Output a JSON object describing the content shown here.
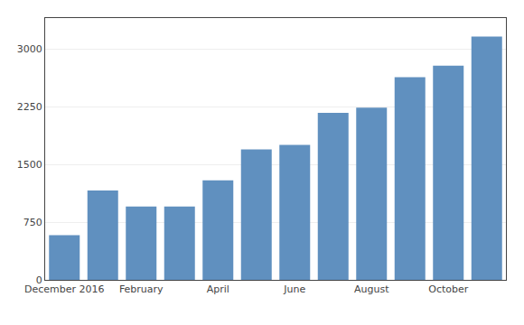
{
  "chart_data": {
    "type": "bar",
    "categories": [
      "December 2016",
      null,
      "February",
      null,
      "April",
      null,
      "June",
      null,
      "August",
      null,
      "October",
      null
    ],
    "values": [
      579,
      1162,
      952,
      952,
      1292,
      1694,
      1754,
      2169,
      2235,
      2632,
      2781,
      3159
    ],
    "color": "#6090BF",
    "ylim": [
      0,
      3400
    ],
    "yticks": [
      0,
      750,
      1500,
      2250,
      3000
    ],
    "grid": true
  }
}
